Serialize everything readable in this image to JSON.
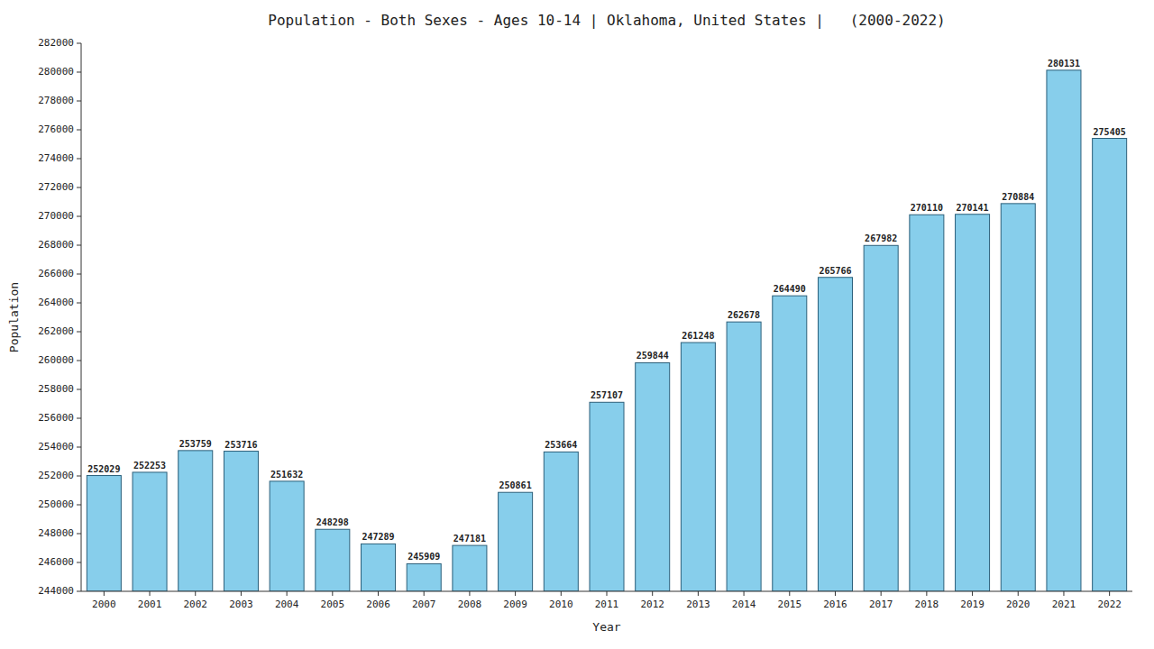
{
  "chart_data": {
    "type": "bar",
    "title": "Population - Both Sexes - Ages 10-14 | Oklahoma, United States |   (2000-2022)",
    "x_label": "Year",
    "y_label": "Population",
    "categories": [
      "2000",
      "2001",
      "2002",
      "2003",
      "2004",
      "2005",
      "2006",
      "2007",
      "2008",
      "2009",
      "2010",
      "2011",
      "2012",
      "2013",
      "2014",
      "2015",
      "2016",
      "2017",
      "2018",
      "2019",
      "2020",
      "2021",
      "2022"
    ],
    "values": [
      252029,
      252253,
      253759,
      253716,
      251632,
      248298,
      247289,
      245909,
      247181,
      250861,
      253664,
      257107,
      259844,
      261248,
      262678,
      264490,
      265766,
      267982,
      270110,
      270141,
      270884,
      280131,
      275405
    ],
    "color": "#87CEEB",
    "ylim": [
      244000,
      282000
    ],
    "yticks": [
      244000,
      246000,
      248000,
      250000,
      252000,
      254000,
      256000,
      258000,
      260000,
      262000,
      264000,
      266000,
      268000,
      270000,
      272000,
      274000,
      276000,
      278000,
      280000,
      282000
    ],
    "grid": false,
    "data_labels": true
  }
}
